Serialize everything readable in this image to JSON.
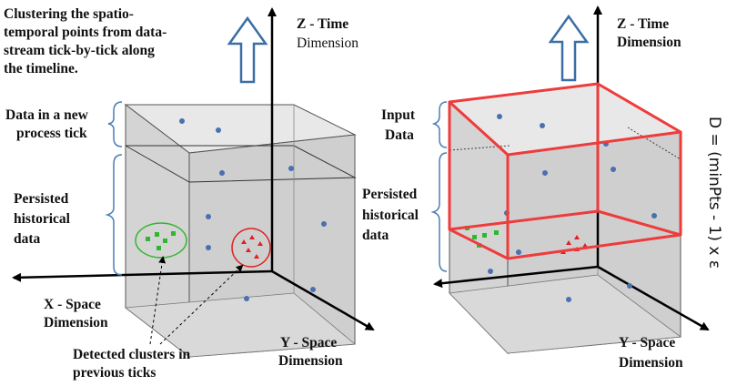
{
  "left": {
    "caption": [
      "Clustering the spatio-",
      "temporal points from data-",
      "stream tick-by-tick along",
      "the timeline."
    ],
    "z_axis": {
      "line1": "Z - Time",
      "line2": "Dimension"
    },
    "new_tick_label": [
      "Data in a new",
      "process tick"
    ],
    "persisted_label": [
      "Persisted",
      "historical",
      "data"
    ],
    "x_axis": [
      "X - Space",
      "Dimension"
    ],
    "y_axis": [
      "Y - Space",
      "Dimension"
    ],
    "clusters_label": [
      "Detected clusters in",
      "previous ticks"
    ]
  },
  "right": {
    "z_axis": {
      "line1": "Z - Time",
      "line2": "Dimension"
    },
    "input_label": [
      "Input",
      "Data"
    ],
    "persisted_label": [
      "Persisted",
      "historical",
      "data"
    ],
    "y_axis": [
      "Y - Space",
      "Dimension"
    ],
    "formula": "D = (minPts - 1) x ε"
  },
  "colors": {
    "cube_fill": "#dcdcdc",
    "arrow_blue": "#3a6ea5",
    "point_blue": "#4a70b0",
    "cluster_green": "#2db82d",
    "cluster_red": "#e02020",
    "highlight_red": "#ee3b3b",
    "brace_blue": "#4a7fb5"
  }
}
